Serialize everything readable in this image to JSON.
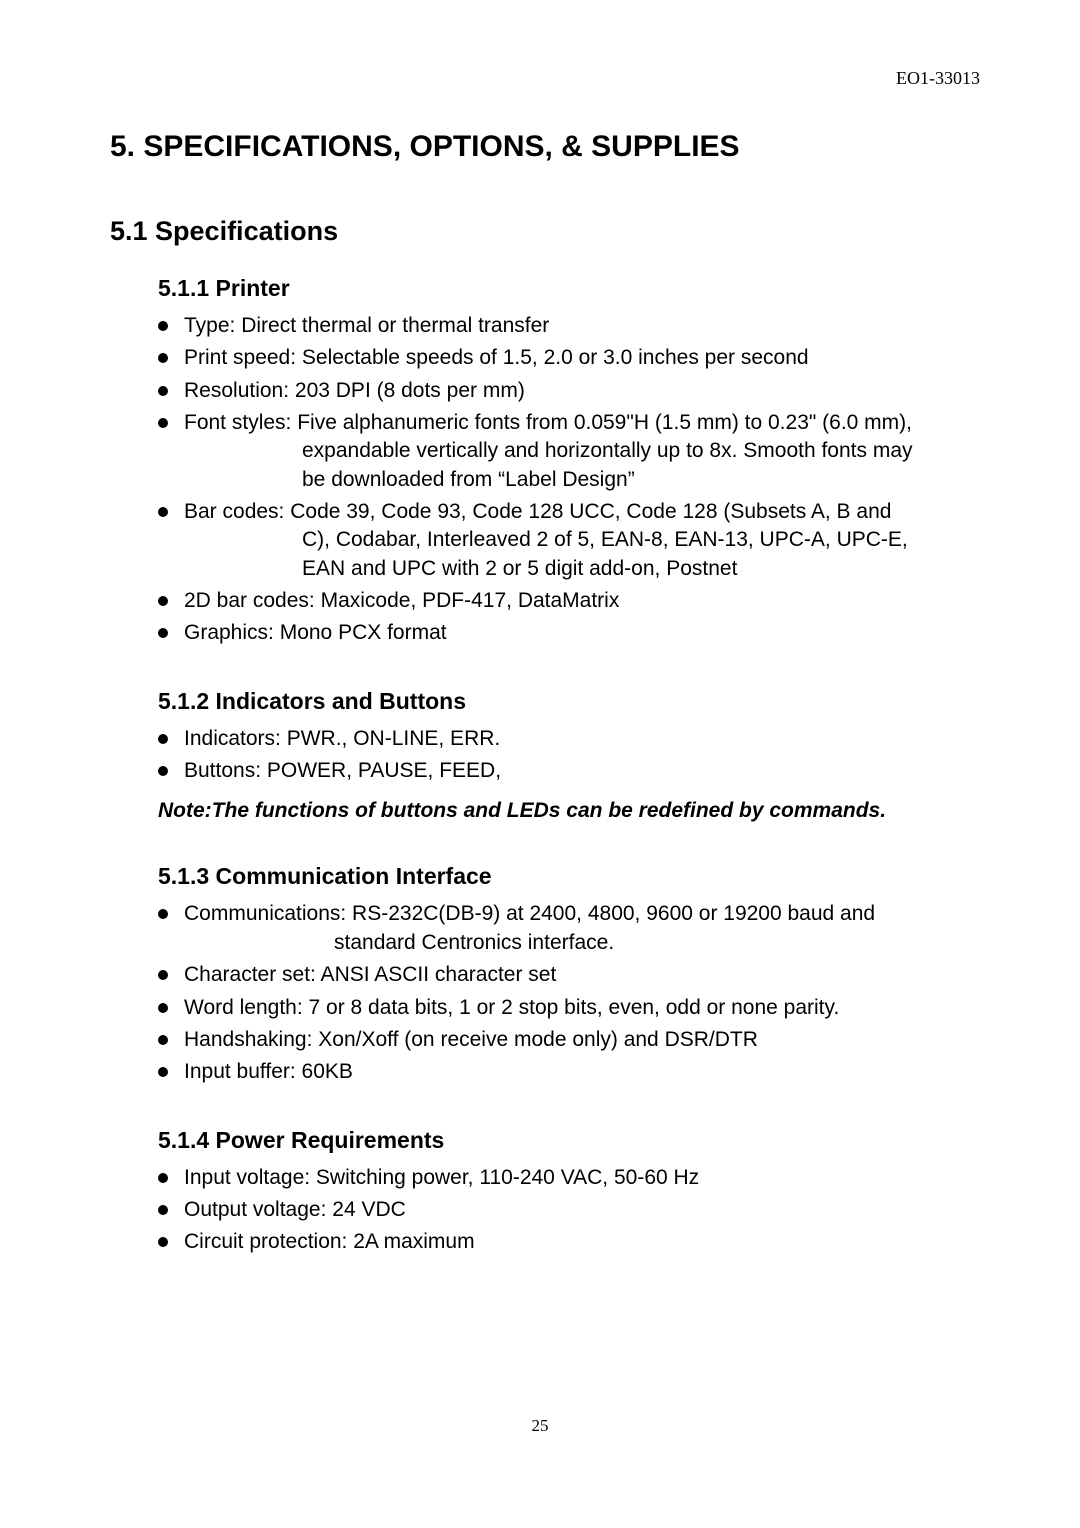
{
  "docId": "EO1-33013",
  "pageNumber": "25",
  "heading1": "5. SPECIFICATIONS, OPTIONS, & SUPPLIES",
  "heading2": "5.1 Specifications",
  "sections": {
    "s1": {
      "title": "5.1.1  Printer",
      "items": [
        {
          "first": "Type: Direct thermal or thermal transfer"
        },
        {
          "first": "Print speed: Selectable speeds of 1.5, 2.0 or 3.0 inches per second"
        },
        {
          "first": "Resolution: 203 DPI (8 dots per mm)"
        },
        {
          "first": "Font styles: Five alphanumeric fonts from 0.059\"H (1.5 mm) to 0.23\" (6.0 mm),",
          "cont": [
            "expandable vertically and horizontally up to 8x. Smooth fonts may",
            "be downloaded from “Label Design”"
          ],
          "indentClass": "cont2"
        },
        {
          "first": "Bar codes: Code 39, Code 93, Code 128 UCC, Code 128 (Subsets A, B and",
          "cont": [
            "C), Codabar, Interleaved 2 of 5, EAN-8, EAN-13, UPC-A, UPC-E,",
            "EAN and UPC with 2 or 5 digit add-on, Postnet"
          ],
          "indentClass": "cont2"
        },
        {
          "first": "2D bar codes: Maxicode, PDF-417, DataMatrix"
        },
        {
          "first": "Graphics: Mono PCX format"
        }
      ]
    },
    "s2": {
      "title": "5.1.2  Indicators and Buttons",
      "items": [
        {
          "first": "Indicators: PWR., ON-LINE, ERR."
        },
        {
          "first": "Buttons: POWER, PAUSE, FEED,"
        }
      ],
      "note": "Note:The functions of buttons and LEDs can be redefined by commands."
    },
    "s3": {
      "title": "5.1.3  Communication Interface",
      "items": [
        {
          "first": "Communications: RS-232C(DB-9) at 2400, 4800, 9600 or 19200 baud and",
          "cont": [
            "standard Centronics interface."
          ],
          "indentClass": "cont"
        },
        {
          "first": "Character set: ANSI ASCII character set"
        },
        {
          "first": "Word length: 7 or 8 data bits, 1 or 2 stop bits, even, odd or none parity."
        },
        {
          "first": "Handshaking: Xon/Xoff (on receive mode only) and DSR/DTR"
        },
        {
          "first": "Input buffer: 60KB"
        }
      ]
    },
    "s4": {
      "title": "5.1.4  Power Requirements",
      "items": [
        {
          "first": "Input voltage: Switching power, 110-240 VAC, 50-60 Hz"
        },
        {
          "first": "Output voltage: 24 VDC"
        },
        {
          "first": "Circuit protection: 2A maximum"
        }
      ]
    }
  }
}
